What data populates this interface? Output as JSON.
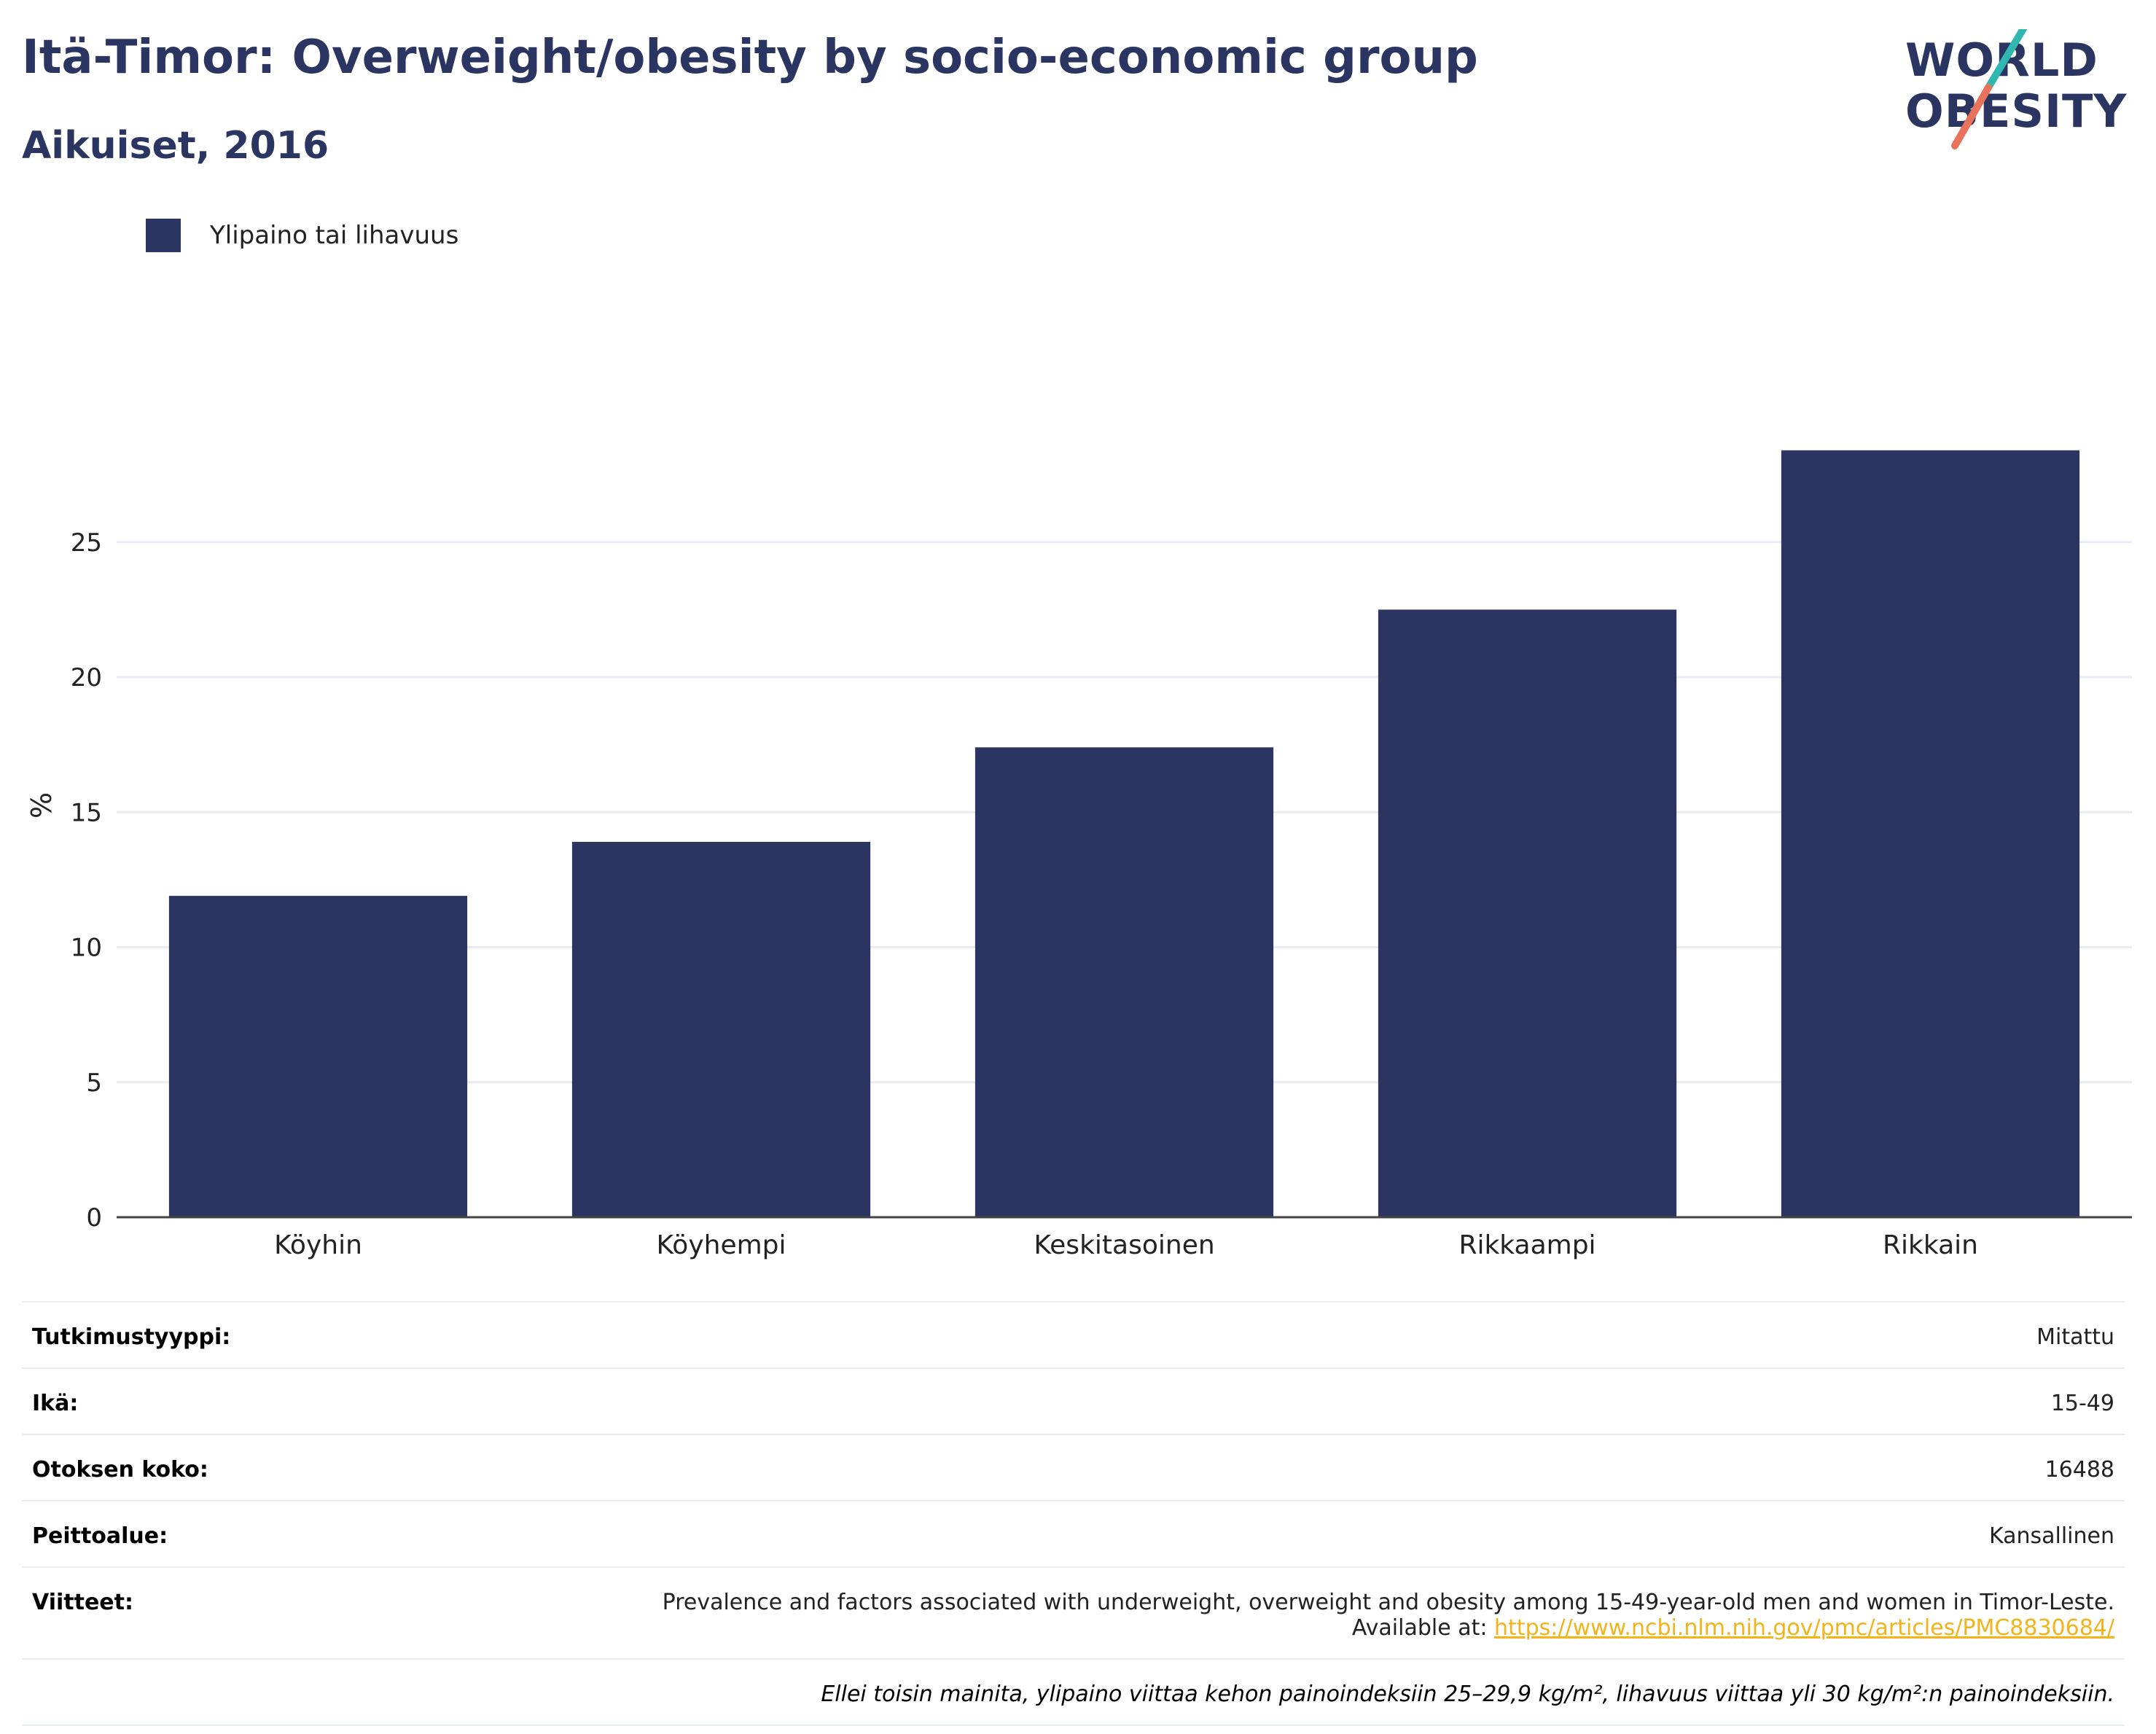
{
  "header": {
    "title": "Itä-Timor: Overweight/obesity by socio-economic group",
    "subtitle": "Aikuiset, 2016"
  },
  "logo": {
    "line1": "WORLD",
    "line2": "OBESITY",
    "colors": {
      "slash_top": "#2fb7b0",
      "slash_bottom": "#e8735a"
    }
  },
  "legend": {
    "label": "Ylipaino tai lihavuus",
    "color": "#2b3561"
  },
  "chart_data": {
    "type": "bar",
    "categories": [
      "Köyhin",
      "Köyhempi",
      "Keskitasoinen",
      "Rikkaampi",
      "Rikkain"
    ],
    "series": [
      {
        "name": "Ylipaino tai lihavuus",
        "values": [
          11.9,
          13.9,
          17.4,
          22.5,
          28.4
        ]
      }
    ],
    "ylabel": "%",
    "yticks": [
      0,
      5,
      10,
      15,
      20,
      25
    ],
    "ylim": [
      0,
      30.5
    ],
    "grid": true,
    "legend_position": "top-left",
    "bar_color": "#2b3561"
  },
  "info": {
    "rows": [
      {
        "key": "Tutkimustyyppi:",
        "value": "Mitattu"
      },
      {
        "key": "Ikä:",
        "value": "15-49"
      },
      {
        "key": "Otoksen koko:",
        "value": "16488"
      },
      {
        "key": "Peittoalue:",
        "value": "Kansallinen"
      }
    ],
    "reference": {
      "key": "Viitteet:",
      "text": "Prevalence and factors associated with underweight, overweight and obesity among 15-49-year-old men and women in Timor-Leste.",
      "available": "Available at:",
      "url": "https://www.ncbi.nlm.nih.gov/pmc/articles/PMC8830684/"
    },
    "note": "Ellei toisin mainita, ylipaino viittaa kehon painoindeksiin 25–29,9 kg/m², lihavuus viittaa yli 30 kg/m²:n painoindeksiin."
  }
}
